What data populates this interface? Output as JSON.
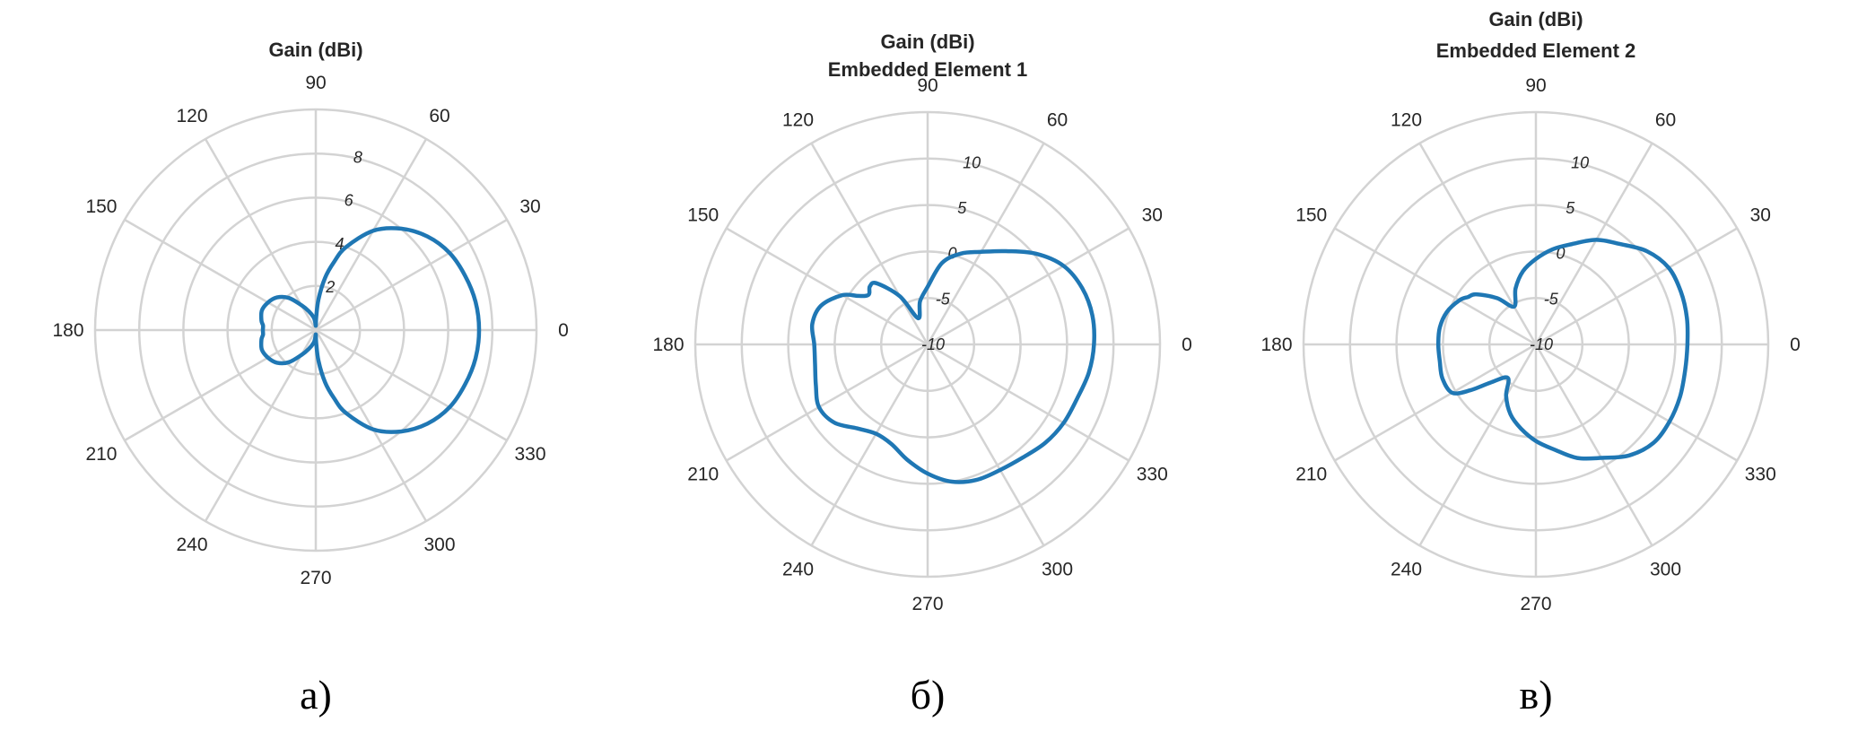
{
  "colors": {
    "series": "#1f77b4",
    "grid": "#d3d3d3",
    "text": "#262626"
  },
  "chart_data": [
    {
      "type": "polar",
      "title": "Gain (dBi)",
      "subtitle": "",
      "caption": "а)",
      "theta_ticks": [
        "0",
        "30",
        "60",
        "90",
        "120",
        "150",
        "180",
        "210",
        "240",
        "270",
        "300",
        "330"
      ],
      "r_ticks": [
        "2",
        "4",
        "6",
        "8"
      ],
      "r_tick_values": [
        2,
        4,
        6,
        8
      ],
      "rlim": [
        0,
        10
      ],
      "grid": true,
      "series": [
        {
          "theta_deg": [
            0,
            10,
            20,
            30,
            40,
            50,
            60,
            70,
            75,
            80,
            85,
            88,
            90,
            95,
            100,
            110,
            120,
            130,
            140,
            150,
            160,
            170,
            175,
            180,
            185,
            190,
            200,
            210,
            220,
            230,
            240,
            250,
            260,
            265,
            270,
            272,
            275,
            280,
            285,
            290,
            300,
            310,
            320,
            330,
            340,
            350
          ],
          "r": [
            7.4,
            7.35,
            7.2,
            7.0,
            6.6,
            6.0,
            5.2,
            4.0,
            3.2,
            2.4,
            1.4,
            0.6,
            0.2,
            0.4,
            0.6,
            0.9,
            1.3,
            1.9,
            2.3,
            2.5,
            2.6,
            2.5,
            2.4,
            2.4,
            2.4,
            2.5,
            2.6,
            2.5,
            2.3,
            1.9,
            1.3,
            0.9,
            0.6,
            0.4,
            0.2,
            0.6,
            1.4,
            2.4,
            3.2,
            4.0,
            5.2,
            6.0,
            6.6,
            7.0,
            7.2,
            7.35
          ]
        }
      ]
    },
    {
      "type": "polar",
      "title": "Gain (dBi)",
      "subtitle": "Embedded Element 1",
      "caption": "б)",
      "theta_ticks": [
        "0",
        "30",
        "60",
        "90",
        "120",
        "150",
        "180",
        "210",
        "240",
        "270",
        "300",
        "330"
      ],
      "r_ticks": [
        "-10",
        "-5",
        "0",
        "5",
        "10"
      ],
      "r_tick_values": [
        -10,
        -5,
        0,
        5,
        10
      ],
      "rlim": [
        -10,
        15
      ],
      "grid": true,
      "series": [
        {
          "theta_deg": [
            0,
            10,
            20,
            30,
            40,
            50,
            60,
            70,
            80,
            90,
            100,
            110,
            120,
            130,
            135,
            140,
            145,
            150,
            160,
            170,
            180,
            190,
            200,
            210,
            220,
            230,
            240,
            250,
            260,
            270,
            280,
            290,
            300,
            310,
            320,
            330,
            340,
            350
          ],
          "r": [
            7.9,
            8.0,
            7.7,
            6.9,
            5.2,
            3.1,
            1.5,
            0.4,
            -1.1,
            -3.8,
            -5.3,
            -7.0,
            -4.0,
            -1.4,
            -1.2,
            -1.7,
            -0.9,
            0.6,
            2.2,
            2.6,
            2.2,
            2.3,
            2.8,
            3.5,
            3.1,
            1.8,
            1.1,
            1.4,
            2.6,
            3.9,
            5.0,
            5.5,
            5.6,
            5.9,
            6.5,
            6.9,
            7.1,
            7.6
          ]
        }
      ]
    },
    {
      "type": "polar",
      "title": "Gain (dBi)",
      "subtitle": "Embedded Element 2",
      "caption": "в)",
      "theta_ticks": [
        "0",
        "30",
        "60",
        "90",
        "120",
        "150",
        "180",
        "210",
        "240",
        "270",
        "300",
        "330"
      ],
      "r_ticks": [
        "-10",
        "-5",
        "0",
        "5",
        "10"
      ],
      "r_tick_values": [
        -10,
        -5,
        0,
        5,
        10
      ],
      "rlim": [
        -10,
        15
      ],
      "grid": true,
      "series": [
        {
          "theta_deg": [
            0,
            10,
            20,
            30,
            40,
            50,
            60,
            70,
            80,
            90,
            100,
            110,
            120,
            130,
            140,
            145,
            150,
            160,
            170,
            180,
            190,
            200,
            210,
            215,
            220,
            230,
            240,
            250,
            260,
            270,
            280,
            290,
            300,
            310,
            320,
            330,
            340,
            350
          ],
          "r": [
            6.3,
            6.5,
            6.6,
            6.5,
            5.6,
            4.1,
            3.0,
            1.5,
            0.4,
            -0.8,
            -2.0,
            -3.6,
            -5.3,
            -3.5,
            -1.6,
            -1.1,
            -0.5,
            0.2,
            0.5,
            0.5,
            0.5,
            0.7,
            0.4,
            -1.4,
            -3.6,
            -5.3,
            -3.6,
            -2.0,
            -0.8,
            0.4,
            1.5,
            3.0,
            4.1,
            5.6,
            6.5,
            6.6,
            6.5,
            6.3
          ]
        }
      ]
    }
  ]
}
